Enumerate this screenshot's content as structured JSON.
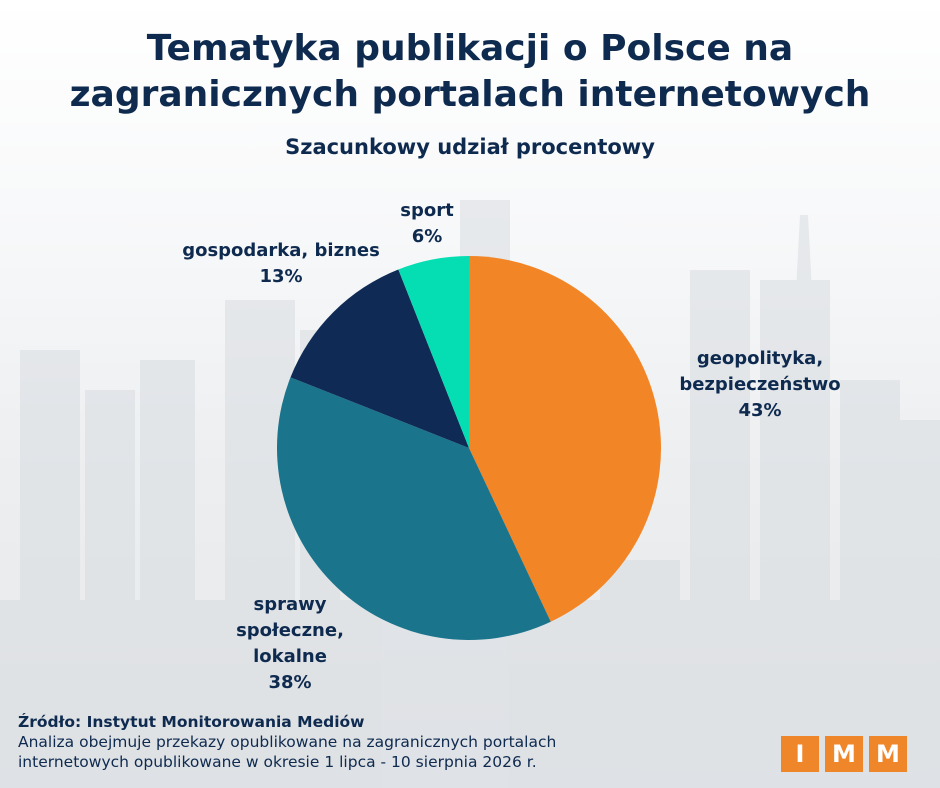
{
  "title_line1": "Tematyka publikacji o Polsce na",
  "title_line2": "zagranicznych portalach internetowych",
  "subtitle": "Szacunkowy udział procentowy",
  "chart_data": {
    "type": "pie",
    "title": "Tematyka publikacji o Polsce na zagranicznych portalach internetowych",
    "subtitle": "Szacunkowy udział procentowy",
    "slices": [
      {
        "label_lines": [
          "geopolityka,",
          "bezpieczeństwo"
        ],
        "value": 43,
        "value_label": "43%",
        "color": "#f28526"
      },
      {
        "label_lines": [
          "sprawy",
          "społeczne,",
          "lokalne"
        ],
        "value": 38,
        "value_label": "38%",
        "color": "#1a748c"
      },
      {
        "label_lines": [
          "gospodarka, biznes"
        ],
        "value": 13,
        "value_label": "13%",
        "color": "#0e2a55"
      },
      {
        "label_lines": [
          "sport"
        ],
        "value": 6,
        "value_label": "6%",
        "color": "#05ddb3"
      }
    ]
  },
  "footer": {
    "source": "Źródło: Instytut Monitorowania Mediów",
    "note_line1": "Analiza obejmuje przekazy opublikowane na zagranicznych portalach",
    "note_line2": "internetowych opublikowane w okresie 1 lipca - 10 sierpnia 2026 r."
  },
  "logo": [
    "I",
    "M",
    "M"
  ],
  "colors": {
    "navy": "#0e2a4f",
    "orange": "#f0862a"
  }
}
